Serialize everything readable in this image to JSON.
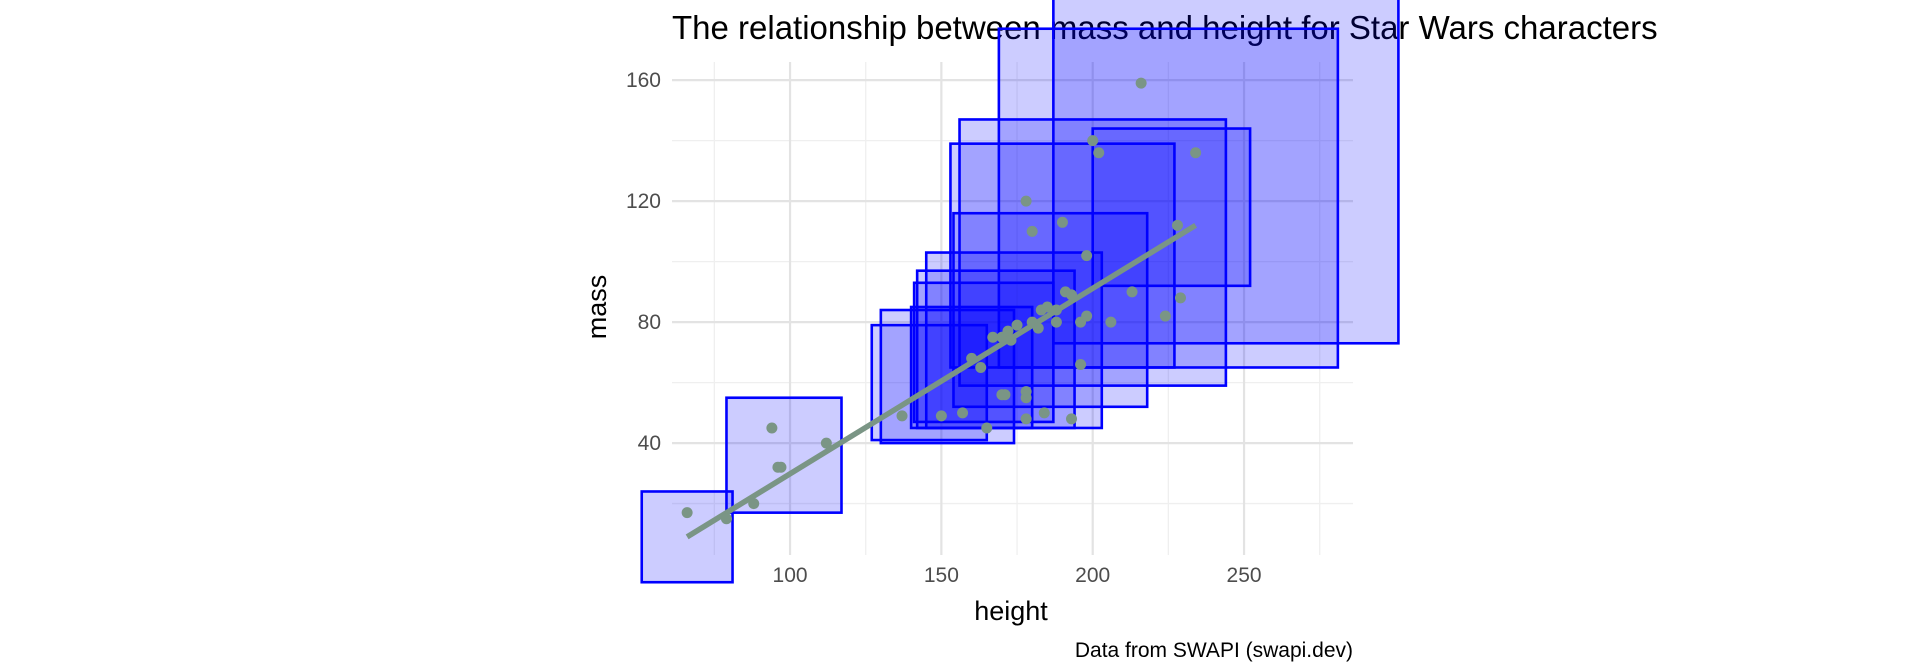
{
  "chart_data": {
    "type": "scatter",
    "title": "The relationship between mass and height for Star Wars characters",
    "xlabel": "height",
    "ylabel": "mass",
    "caption": "Data from SWAPI (swapi.dev)",
    "xlim": [
      61,
      286
    ],
    "ylim": [
      3,
      166
    ],
    "x_ticks": [
      100,
      150,
      200,
      250
    ],
    "y_ticks": [
      40,
      80,
      120,
      160
    ],
    "grid": true,
    "legend": "none",
    "colors": {
      "points": "#7a9585",
      "trend_line": "#7a9585",
      "box_fill": "#0000ff",
      "box_fill_opacity": 0.2,
      "box_stroke": "#0000ff"
    },
    "points": [
      [
        66,
        17
      ],
      [
        79,
        15
      ],
      [
        88,
        20
      ],
      [
        94,
        45
      ],
      [
        96,
        32
      ],
      [
        97,
        32
      ],
      [
        112,
        40
      ],
      [
        137,
        49
      ],
      [
        150,
        49
      ],
      [
        157,
        50
      ],
      [
        160,
        68
      ],
      [
        163,
        65
      ],
      [
        165,
        45
      ],
      [
        170,
        56
      ],
      [
        171,
        56
      ],
      [
        167,
        75
      ],
      [
        170,
        75
      ],
      [
        172,
        77
      ],
      [
        173,
        74
      ],
      [
        175,
        79
      ],
      [
        178,
        55
      ],
      [
        178,
        57
      ],
      [
        178,
        48
      ],
      [
        178,
        120
      ],
      [
        180,
        110
      ],
      [
        180,
        80
      ],
      [
        182,
        78
      ],
      [
        183,
        84
      ],
      [
        184,
        50
      ],
      [
        185,
        85
      ],
      [
        188,
        84
      ],
      [
        188,
        80
      ],
      [
        190,
        113
      ],
      [
        191,
        90
      ],
      [
        193,
        48
      ],
      [
        193,
        89
      ],
      [
        196,
        66
      ],
      [
        196,
        80
      ],
      [
        198,
        102
      ],
      [
        198,
        82
      ],
      [
        200,
        140
      ],
      [
        202,
        136
      ],
      [
        206,
        80
      ],
      [
        213,
        90
      ],
      [
        216,
        159
      ],
      [
        224,
        82
      ],
      [
        228,
        112
      ],
      [
        229,
        88
      ],
      [
        234,
        136
      ]
    ],
    "trend_line": [
      [
        66,
        9
      ],
      [
        234,
        112
      ]
    ],
    "boxes": [
      [
        66,
        9,
        15
      ],
      [
        98,
        36,
        19
      ],
      [
        146,
        60,
        19
      ],
      [
        152,
        62,
        22
      ],
      [
        160,
        65,
        20
      ],
      [
        164,
        70,
        23
      ],
      [
        168,
        71,
        26
      ],
      [
        174,
        74,
        29
      ],
      [
        186,
        84,
        32
      ],
      [
        190,
        102,
        37
      ],
      [
        200,
        103,
        44
      ],
      [
        225,
        121,
        56
      ],
      [
        244,
        130,
        57
      ],
      [
        226,
        118,
        26
      ]
    ]
  }
}
